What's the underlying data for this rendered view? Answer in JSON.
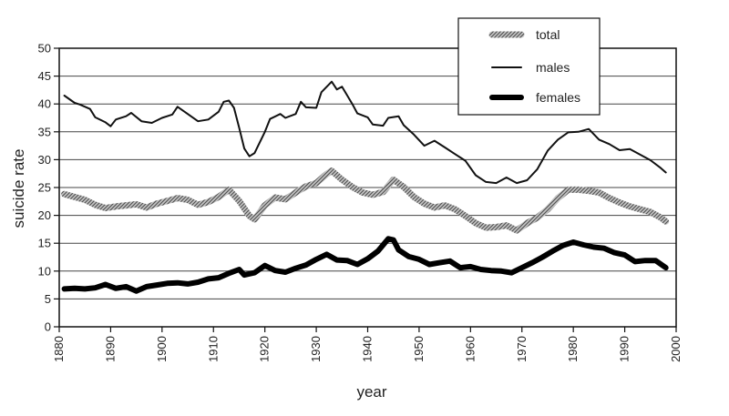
{
  "chart_data": {
    "type": "line",
    "xlabel": "year",
    "ylabel": "suicide rate",
    "xlim": [
      1880,
      2000
    ],
    "ylim": [
      0,
      50
    ],
    "x_ticks": [
      1880,
      1890,
      1900,
      1910,
      1920,
      1930,
      1940,
      1950,
      1960,
      1970,
      1980,
      1990,
      2000
    ],
    "y_ticks": [
      0,
      5,
      10,
      15,
      20,
      25,
      30,
      35,
      40,
      45,
      50
    ],
    "grid": "horizontal",
    "legend_position": "top-right",
    "series": [
      {
        "name": "total",
        "style": "hatched",
        "color": "#8a8a8a",
        "points": [
          [
            1881,
            23.8
          ],
          [
            1883,
            23.3
          ],
          [
            1885,
            22.8
          ],
          [
            1887,
            21.9
          ],
          [
            1889,
            21.3
          ],
          [
            1891,
            21.6
          ],
          [
            1893,
            21.8
          ],
          [
            1895,
            22.0
          ],
          [
            1897,
            21.4
          ],
          [
            1899,
            22.1
          ],
          [
            1901,
            22.6
          ],
          [
            1903,
            23.1
          ],
          [
            1905,
            22.8
          ],
          [
            1907,
            21.9
          ],
          [
            1909,
            22.4
          ],
          [
            1911,
            23.3
          ],
          [
            1913,
            24.6
          ],
          [
            1915,
            22.6
          ],
          [
            1917,
            19.9
          ],
          [
            1918,
            19.3
          ],
          [
            1920,
            21.8
          ],
          [
            1922,
            23.2
          ],
          [
            1924,
            22.9
          ],
          [
            1926,
            24.1
          ],
          [
            1928,
            25.2
          ],
          [
            1930,
            25.8
          ],
          [
            1932,
            27.4
          ],
          [
            1933,
            28.0
          ],
          [
            1935,
            26.4
          ],
          [
            1937,
            25.1
          ],
          [
            1939,
            24.1
          ],
          [
            1941,
            23.7
          ],
          [
            1943,
            24.2
          ],
          [
            1945,
            26.4
          ],
          [
            1947,
            25.1
          ],
          [
            1949,
            23.3
          ],
          [
            1951,
            22.1
          ],
          [
            1953,
            21.4
          ],
          [
            1955,
            21.8
          ],
          [
            1957,
            21.1
          ],
          [
            1959,
            19.9
          ],
          [
            1961,
            18.6
          ],
          [
            1963,
            17.8
          ],
          [
            1965,
            17.9
          ],
          [
            1967,
            18.2
          ],
          [
            1969,
            17.3
          ],
          [
            1971,
            18.6
          ],
          [
            1973,
            19.6
          ],
          [
            1975,
            21.1
          ],
          [
            1977,
            23.1
          ],
          [
            1979,
            24.6
          ],
          [
            1981,
            24.6
          ],
          [
            1983,
            24.4
          ],
          [
            1985,
            24.1
          ],
          [
            1987,
            23.1
          ],
          [
            1989,
            22.3
          ],
          [
            1991,
            21.6
          ],
          [
            1993,
            21.1
          ],
          [
            1995,
            20.6
          ],
          [
            1997,
            19.6
          ],
          [
            1998,
            18.9
          ]
        ]
      },
      {
        "name": "males",
        "style": "thin",
        "color": "#111111",
        "points": [
          [
            1881,
            41.5
          ],
          [
            1883,
            40.2
          ],
          [
            1884,
            39.9
          ],
          [
            1886,
            39.1
          ],
          [
            1887,
            37.6
          ],
          [
            1889,
            36.7
          ],
          [
            1890,
            36.0
          ],
          [
            1891,
            37.2
          ],
          [
            1893,
            37.8
          ],
          [
            1894,
            38.4
          ],
          [
            1896,
            36.9
          ],
          [
            1898,
            36.6
          ],
          [
            1900,
            37.5
          ],
          [
            1902,
            38.1
          ],
          [
            1903,
            39.5
          ],
          [
            1905,
            38.2
          ],
          [
            1907,
            36.9
          ],
          [
            1909,
            37.2
          ],
          [
            1911,
            38.6
          ],
          [
            1912,
            40.4
          ],
          [
            1913,
            40.6
          ],
          [
            1914,
            39.3
          ],
          [
            1915,
            35.7
          ],
          [
            1916,
            32.0
          ],
          [
            1917,
            30.6
          ],
          [
            1918,
            31.2
          ],
          [
            1920,
            35.0
          ],
          [
            1921,
            37.3
          ],
          [
            1923,
            38.2
          ],
          [
            1924,
            37.5
          ],
          [
            1926,
            38.2
          ],
          [
            1927,
            40.4
          ],
          [
            1928,
            39.4
          ],
          [
            1930,
            39.3
          ],
          [
            1931,
            42.1
          ],
          [
            1933,
            44.0
          ],
          [
            1934,
            42.6
          ],
          [
            1935,
            43.1
          ],
          [
            1937,
            40.0
          ],
          [
            1938,
            38.3
          ],
          [
            1940,
            37.6
          ],
          [
            1941,
            36.3
          ],
          [
            1943,
            36.1
          ],
          [
            1944,
            37.5
          ],
          [
            1946,
            37.8
          ],
          [
            1947,
            36.2
          ],
          [
            1949,
            34.5
          ],
          [
            1951,
            32.5
          ],
          [
            1953,
            33.4
          ],
          [
            1955,
            32.2
          ],
          [
            1957,
            31.0
          ],
          [
            1959,
            29.8
          ],
          [
            1961,
            27.2
          ],
          [
            1963,
            26.0
          ],
          [
            1965,
            25.8
          ],
          [
            1967,
            26.8
          ],
          [
            1969,
            25.8
          ],
          [
            1971,
            26.3
          ],
          [
            1973,
            28.3
          ],
          [
            1975,
            31.6
          ],
          [
            1977,
            33.6
          ],
          [
            1979,
            34.9
          ],
          [
            1981,
            35.0
          ],
          [
            1983,
            35.5
          ],
          [
            1985,
            33.6
          ],
          [
            1987,
            32.8
          ],
          [
            1989,
            31.7
          ],
          [
            1991,
            31.9
          ],
          [
            1993,
            30.9
          ],
          [
            1995,
            29.9
          ],
          [
            1997,
            28.5
          ],
          [
            1998,
            27.7
          ]
        ]
      },
      {
        "name": "females",
        "style": "thick",
        "color": "#000000",
        "points": [
          [
            1881,
            6.8
          ],
          [
            1883,
            6.9
          ],
          [
            1885,
            6.8
          ],
          [
            1887,
            7.0
          ],
          [
            1889,
            7.6
          ],
          [
            1891,
            6.9
          ],
          [
            1893,
            7.2
          ],
          [
            1895,
            6.4
          ],
          [
            1897,
            7.2
          ],
          [
            1899,
            7.5
          ],
          [
            1901,
            7.8
          ],
          [
            1903,
            7.9
          ],
          [
            1905,
            7.7
          ],
          [
            1907,
            8.0
          ],
          [
            1909,
            8.6
          ],
          [
            1911,
            8.8
          ],
          [
            1913,
            9.6
          ],
          [
            1915,
            10.3
          ],
          [
            1916,
            9.3
          ],
          [
            1918,
            9.7
          ],
          [
            1920,
            11.0
          ],
          [
            1922,
            10.1
          ],
          [
            1924,
            9.8
          ],
          [
            1926,
            10.5
          ],
          [
            1928,
            11.1
          ],
          [
            1930,
            12.1
          ],
          [
            1932,
            13.0
          ],
          [
            1934,
            12.0
          ],
          [
            1936,
            11.9
          ],
          [
            1938,
            11.2
          ],
          [
            1940,
            12.2
          ],
          [
            1942,
            13.6
          ],
          [
            1944,
            15.8
          ],
          [
            1945,
            15.6
          ],
          [
            1946,
            13.8
          ],
          [
            1948,
            12.6
          ],
          [
            1950,
            12.1
          ],
          [
            1952,
            11.2
          ],
          [
            1954,
            11.5
          ],
          [
            1956,
            11.8
          ],
          [
            1958,
            10.6
          ],
          [
            1960,
            10.8
          ],
          [
            1962,
            10.3
          ],
          [
            1964,
            10.1
          ],
          [
            1966,
            10.0
          ],
          [
            1968,
            9.7
          ],
          [
            1970,
            10.6
          ],
          [
            1972,
            11.5
          ],
          [
            1974,
            12.5
          ],
          [
            1976,
            13.6
          ],
          [
            1978,
            14.6
          ],
          [
            1980,
            15.2
          ],
          [
            1982,
            14.7
          ],
          [
            1984,
            14.3
          ],
          [
            1986,
            14.1
          ],
          [
            1988,
            13.3
          ],
          [
            1990,
            12.9
          ],
          [
            1992,
            11.7
          ],
          [
            1994,
            11.9
          ],
          [
            1996,
            11.9
          ],
          [
            1998,
            10.6
          ]
        ]
      }
    ]
  }
}
